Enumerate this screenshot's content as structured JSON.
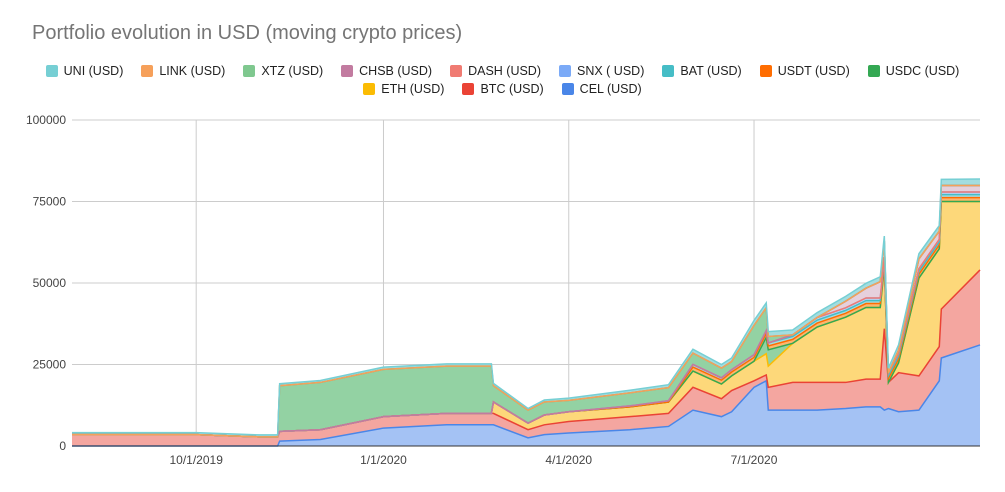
{
  "chart_data": {
    "type": "area",
    "stacked": true,
    "title": "Portfolio evolution in USD (moving crypto prices)",
    "xlabel": "",
    "ylabel": "",
    "x_range": [
      "2019-08-01",
      "2020-10-20"
    ],
    "ylim": [
      0,
      100000
    ],
    "yticks": [
      "0",
      "25000",
      "50000",
      "75000",
      "100000"
    ],
    "ytick_values": [
      0,
      25000,
      50000,
      75000,
      100000
    ],
    "xticks": [
      {
        "label": "10/1/2019",
        "date": "2019-10-01"
      },
      {
        "label": "1/1/2020",
        "date": "2020-01-01"
      },
      {
        "label": "4/1/2020",
        "date": "2020-04-01"
      },
      {
        "label": "7/1/2020",
        "date": "2020-07-01"
      }
    ],
    "grid": true,
    "legend_position": "top",
    "legend": [
      "UNI (USD)",
      "LINK (USD)",
      "XTZ (USD)",
      "CHSB (USD)",
      "DASH (USD)",
      "SNX ( USD)",
      "BAT (USD)",
      "USDT (USD)",
      "USDC (USD)",
      "ETH (USD)",
      "BTC (USD)",
      "CEL (USD)"
    ],
    "dates": [
      "2019-08-01",
      "2019-09-01",
      "2019-10-01",
      "2019-11-01",
      "2019-11-10",
      "2019-11-11",
      "2019-12-01",
      "2020-01-01",
      "2020-02-01",
      "2020-02-23",
      "2020-02-24",
      "2020-03-12",
      "2020-03-20",
      "2020-04-01",
      "2020-05-01",
      "2020-05-20",
      "2020-06-01",
      "2020-06-15",
      "2020-06-20",
      "2020-07-01",
      "2020-07-07",
      "2020-07-08",
      "2020-07-20",
      "2020-08-01",
      "2020-08-15",
      "2020-08-25",
      "2020-09-01",
      "2020-09-03",
      "2020-09-05",
      "2020-09-10",
      "2020-09-20",
      "2020-09-30",
      "2020-10-01",
      "2020-10-20"
    ],
    "series": [
      {
        "name": "CEL (USD)",
        "color": "#a4c2f4",
        "line": "#4a86e8",
        "values": [
          0,
          0,
          0,
          0,
          0,
          1500,
          2000,
          5500,
          6500,
          6500,
          6500,
          2500,
          3500,
          4000,
          5000,
          6000,
          11000,
          9000,
          10500,
          18000,
          20000,
          11000,
          11000,
          11000,
          11500,
          12000,
          12000,
          11000,
          11500,
          10500,
          11000,
          20000,
          27000,
          31000
        ]
      },
      {
        "name": "BTC (USD)",
        "color": "#f4a6a0",
        "line": "#ea4335",
        "values": [
          3500,
          3500,
          3500,
          2800,
          2800,
          3000,
          3000,
          3500,
          3500,
          3500,
          3500,
          2500,
          3000,
          3500,
          4000,
          4000,
          7000,
          5500,
          6500,
          2000,
          1800,
          7000,
          8500,
          8500,
          8000,
          8500,
          8500,
          25000,
          8000,
          12000,
          10500,
          10500,
          15000,
          23000
        ]
      },
      {
        "name": "ETH (USD)",
        "color": "#fdd87a",
        "line": "#fbbc04",
        "values": [
          0,
          0,
          0,
          0,
          0,
          0,
          0,
          0,
          0,
          0,
          3500,
          2000,
          3000,
          3000,
          3000,
          3500,
          5000,
          4500,
          4500,
          6000,
          6500,
          6500,
          12000,
          17000,
          20000,
          22000,
          22000,
          19000,
          0,
          3000,
          30000,
          30000,
          33000,
          21000
        ]
      },
      {
        "name": "USDC (USD)",
        "color": "#93d2a3",
        "line": "#34a853",
        "values": [
          0,
          0,
          0,
          0,
          0,
          0,
          0,
          0,
          0,
          0,
          0,
          0,
          0,
          0,
          0,
          0,
          0,
          0,
          0,
          0,
          5000,
          5000,
          0,
          0,
          0,
          0,
          0,
          0,
          0,
          0,
          0,
          0,
          0,
          0
        ]
      },
      {
        "name": "USDT (USD)",
        "color": "#fcb670",
        "line": "#ff6d01",
        "values": [
          0,
          0,
          0,
          0,
          0,
          0,
          0,
          0,
          0,
          0,
          0,
          0,
          0,
          0,
          0,
          0,
          1200,
          1200,
          1200,
          1200,
          1200,
          1200,
          1200,
          1200,
          1200,
          1200,
          1200,
          1200,
          1200,
          1200,
          1200,
          1200,
          1200,
          1200
        ]
      },
      {
        "name": "BAT (USD)",
        "color": "#a3dde0",
        "line": "#46bdc6",
        "values": [
          0,
          0,
          0,
          0,
          0,
          0,
          0,
          0,
          0,
          0,
          0,
          0,
          0,
          0,
          300,
          400,
          800,
          700,
          700,
          800,
          900,
          900,
          900,
          900,
          900,
          900,
          900,
          900,
          900,
          900,
          900,
          900,
          900,
          900
        ]
      },
      {
        "name": "SNX ( USD)",
        "color": "#bcd3f7",
        "line": "#7baaf7",
        "values": [
          0,
          0,
          0,
          0,
          0,
          0,
          0,
          0,
          0,
          0,
          0,
          0,
          0,
          0,
          0,
          0,
          0,
          0,
          0,
          0,
          0,
          0,
          500,
          800,
          800,
          800,
          800,
          800,
          800,
          800,
          800,
          800,
          800,
          800
        ]
      },
      {
        "name": "DASH (USD)",
        "color": "#f5c2bd",
        "line": "#f07b72",
        "values": [
          0,
          0,
          0,
          0,
          0,
          0,
          0,
          0,
          0,
          0,
          0,
          0,
          0,
          0,
          0,
          0,
          0,
          0,
          0,
          0,
          0,
          0,
          0,
          0,
          0,
          0,
          0,
          0,
          0,
          0,
          0,
          0,
          0,
          0
        ]
      },
      {
        "name": "CHSB (USD)",
        "color": "#e6d0dc",
        "line": "#c27ba0",
        "values": [
          0,
          0,
          0,
          0,
          0,
          0,
          0,
          0,
          0,
          0,
          0,
          0,
          0,
          0,
          0,
          0,
          0,
          0,
          0,
          0,
          0,
          0,
          0,
          0,
          2000,
          3000,
          5000,
          5000,
          0,
          1000,
          3000,
          2500,
          2000,
          2000
        ]
      },
      {
        "name": "XTZ (USD)",
        "color": "#93d2a3",
        "line": "#57bb8a",
        "values": [
          0,
          0,
          0,
          0,
          0,
          14000,
          14500,
          14500,
          14500,
          14500,
          5000,
          4000,
          4000,
          3500,
          4000,
          4000,
          3500,
          3000,
          2500,
          9000,
          7000,
          2000,
          0,
          0,
          0,
          0,
          0,
          0,
          0,
          0,
          0,
          0,
          0,
          0
        ]
      },
      {
        "name": "LINK (USD)",
        "color": "#fbbc84",
        "line": "#f6a05a",
        "values": [
          0,
          0,
          0,
          0,
          0,
          0,
          0,
          0,
          0,
          0,
          0,
          0,
          0,
          0,
          0,
          0,
          0,
          0,
          0,
          0,
          0,
          0,
          0,
          0,
          0,
          0,
          0,
          0,
          0,
          0,
          0,
          0,
          0,
          0
        ]
      },
      {
        "name": "UNI (USD)",
        "color": "#a3dde0",
        "line": "#76cfd4",
        "values": [
          600,
          600,
          600,
          600,
          600,
          600,
          600,
          700,
          700,
          700,
          700,
          500,
          600,
          700,
          800,
          900,
          1200,
          1100,
          1100,
          1500,
          1500,
          1500,
          1500,
          1500,
          1500,
          1500,
          1500,
          1500,
          1500,
          1600,
          1600,
          1700,
          1900,
          2000
        ]
      }
    ]
  },
  "legend_rows": [
    [
      {
        "label": "UNI (USD)",
        "color": "#76cfd4"
      },
      {
        "label": "LINK (USD)",
        "color": "#f6a05a"
      },
      {
        "label": "XTZ (USD)",
        "color": "#7fc88f"
      },
      {
        "label": "CHSB (USD)",
        "color": "#c27ba0"
      },
      {
        "label": "DASH (USD)",
        "color": "#f07b72"
      },
      {
        "label": "SNX ( USD)",
        "color": "#7baaf7"
      },
      {
        "label": "BAT (USD)",
        "color": "#46bdc6"
      },
      {
        "label": "USDT (USD)",
        "color": "#ff6d01"
      },
      {
        "label": "USDC (USD)",
        "color": "#34a853"
      }
    ],
    [
      {
        "label": "ETH (USD)",
        "color": "#fbbc04"
      },
      {
        "label": "BTC (USD)",
        "color": "#ea4335"
      },
      {
        "label": "CEL (USD)",
        "color": "#4a86e8"
      }
    ]
  ]
}
